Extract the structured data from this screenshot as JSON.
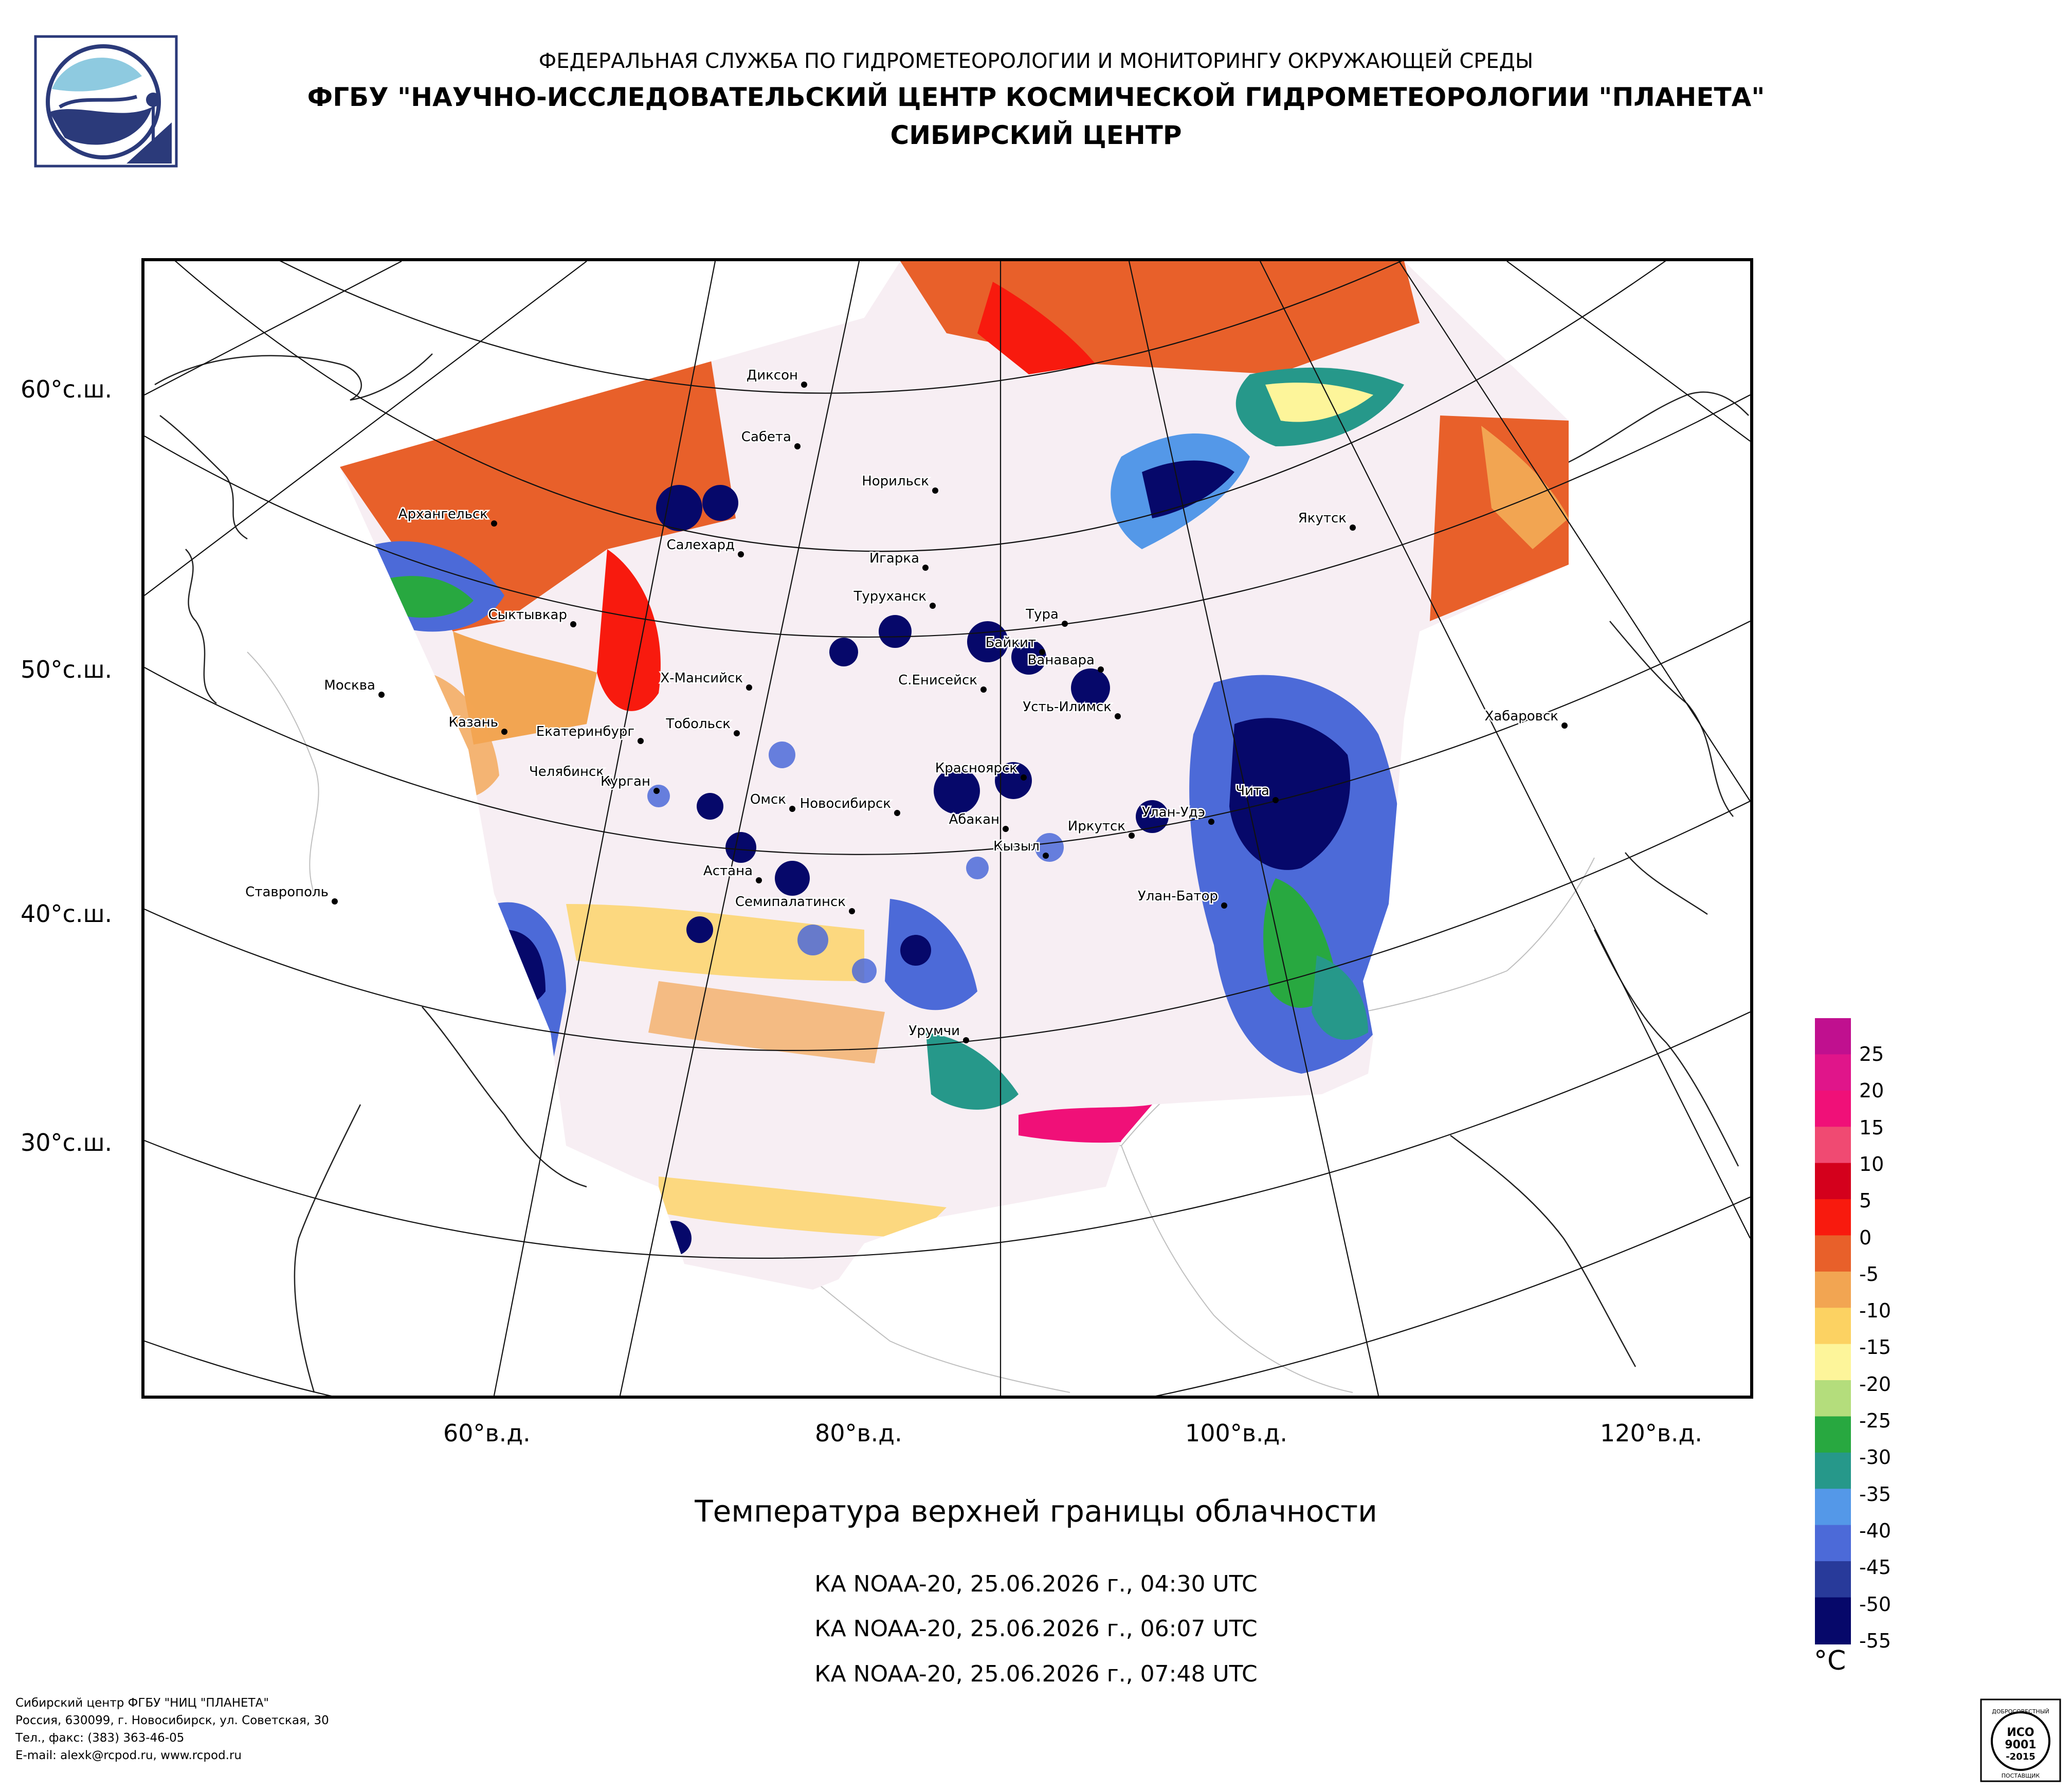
{
  "header": {
    "line1": "ФЕДЕРАЛЬНАЯ СЛУЖБА ПО ГИДРОМЕТЕОРОЛОГИИ И МОНИТОРИНГУ ОКРУЖАЮЩЕЙ СРЕДЫ",
    "line2": "ФГБУ \"НАУЧНО-ИССЛЕДОВАТЕЛЬСКИЙ ЦЕНТР КОСМИЧЕСКОЙ ГИДРОМЕТЕОРОЛОГИИ \"ПЛАНЕТА\"",
    "line3": "СИБИРСКИЙ ЦЕНТР"
  },
  "map": {
    "lat_labels": [
      "60°с.ш.",
      "50°с.ш.",
      "40°с.ш.",
      "30°с.ш."
    ],
    "lon_labels": [
      "60°в.д.",
      "80°в.д.",
      "100°в.д.",
      "120°в.д."
    ],
    "cities": [
      {
        "name": "Диксон"
      },
      {
        "name": "Сабета"
      },
      {
        "name": "Норильск"
      },
      {
        "name": "Архангельск"
      },
      {
        "name": "Салехард"
      },
      {
        "name": "Игарка"
      },
      {
        "name": "Якутск"
      },
      {
        "name": "Туруханск"
      },
      {
        "name": "Тура"
      },
      {
        "name": "Сыктывкар"
      },
      {
        "name": "Байкит"
      },
      {
        "name": "Ванавара"
      },
      {
        "name": "Москва"
      },
      {
        "name": "Х-Мансийск"
      },
      {
        "name": "С.Енисейск"
      },
      {
        "name": "Усть-Илимск"
      },
      {
        "name": "Хабаровск"
      },
      {
        "name": "Казань"
      },
      {
        "name": "Тобольск"
      },
      {
        "name": "Екатеринбург"
      },
      {
        "name": "Красноярск"
      },
      {
        "name": "Челябинск"
      },
      {
        "name": "Чита"
      },
      {
        "name": "Курган"
      },
      {
        "name": "Омск"
      },
      {
        "name": "Новосибирск"
      },
      {
        "name": "Улан-Удэ"
      },
      {
        "name": "Абакан"
      },
      {
        "name": "Иркутск"
      },
      {
        "name": "Кызыл"
      },
      {
        "name": "Астана"
      },
      {
        "name": "Ставрополь"
      },
      {
        "name": "Улан-Батор"
      },
      {
        "name": "Семипалатинск"
      },
      {
        "name": "Урумчи"
      }
    ]
  },
  "title": "Температура верхней границы облачности",
  "passes": [
    "КА NOAA-20, 25.06.2026 г., 04:30 UTC",
    "КА NOAA-20, 25.06.2026 г., 06:07 UTC",
    "КА NOAA-20, 25.06.2026 г., 07:48 UTC"
  ],
  "legend": {
    "unit": "°C",
    "ticks": [
      "25",
      "20",
      "15",
      "10",
      "5",
      "0",
      "-5",
      "-10",
      "-15",
      "-20",
      "-25",
      "-30",
      "-35",
      "-40",
      "-45",
      "-50",
      "-55"
    ],
    "colors": [
      "#c0108f",
      "#e0158a",
      "#f01078",
      "#f04a72",
      "#d4001c",
      "#f81a0e",
      "#e8602a",
      "#f2a552",
      "#fcd262",
      "#fdf59a",
      "#b4dd7c",
      "#28a840",
      "#26988a",
      "#5498e8",
      "#4c6ad8",
      "#283a9a",
      "#06086a"
    ]
  },
  "footer": {
    "line1": "Сибирский центр ФГБУ \"НИЦ \"ПЛАНЕТА\"",
    "line2": "Россия, 630099, г. Новосибирск, ул. Советская, 30",
    "line3": "Тел., факс: (383) 363-46-05",
    "line4": "E-mail: alexk@rcpod.ru, www.rcpod.ru"
  },
  "iso": {
    "top": "ДОБРОСОВЕСТНЫЙ",
    "mid1": "ИСО",
    "mid2": "9001",
    "mid3": "-2015",
    "bottom": "ПОСТАВЩИК"
  }
}
